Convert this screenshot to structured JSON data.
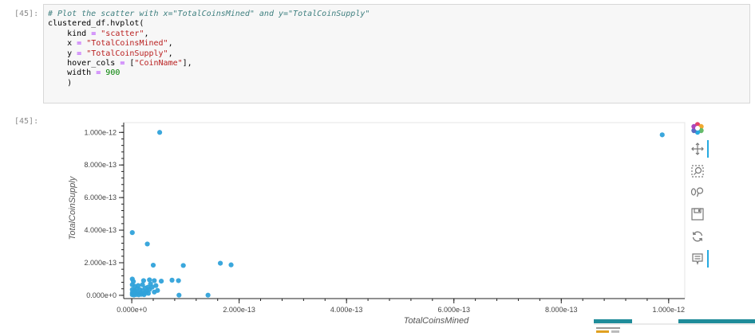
{
  "cells": {
    "in_prompt": "[45]:",
    "out_prompt": "[45]:",
    "code": {
      "comment": "# Plot the scatter with x=\"TotalCoinsMined\" and y=\"TotalCoinSupply\"",
      "line2": "clustered_df.hvplot(",
      "kind_key": "kind",
      "kind_val": "\"scatter\"",
      "x_key": "x",
      "x_val": "\"TotalCoinsMined\"",
      "y_key": "y",
      "y_val": "\"TotalCoinSupply\"",
      "hover_key": "hover_cols",
      "hover_val": "\"CoinName\"",
      "width_key": "width",
      "width_val": "900",
      "close": ")"
    }
  },
  "chart_data": {
    "type": "scatter",
    "xlabel": "TotalCoinsMined",
    "ylabel": "TotalCoinSupply",
    "xlim": [
      -1.5e-14,
      1.03e-12
    ],
    "ylim": [
      -2e-14,
      1.06e-12
    ],
    "xticks": [
      0,
      2e-13,
      4e-13,
      6e-13,
      8e-13,
      1e-12
    ],
    "xtick_labels": [
      "0.000e+0",
      "2.000e-13",
      "4.000e-13",
      "6.000e-13",
      "8.000e-13",
      "1.000e-12"
    ],
    "yticks": [
      0,
      2e-13,
      4e-13,
      6e-13,
      8e-13,
      1e-12
    ],
    "ytick_labels": [
      "0.000e+0",
      "2.000e-13",
      "4.000e-13",
      "6.000e-13",
      "8.000e-13",
      "1.000e-12"
    ],
    "color": "#30a2da",
    "points": [
      [
        5.2e-14,
        1e-12
      ],
      [
        9.88e-13,
        9.85e-13
      ],
      [
        1e-15,
        3.85e-13
      ],
      [
        2.9e-14,
        3.15e-13
      ],
      [
        4e-14,
        1.85e-13
      ],
      [
        9.6e-14,
        1.83e-13
      ],
      [
        1.65e-13,
        1.97e-13
      ],
      [
        1.85e-13,
        1.87e-13
      ],
      [
        1e-15,
        1e-13
      ],
      [
        3e-15,
        8.5e-14
      ],
      [
        2.2e-14,
        9e-14
      ],
      [
        3.3e-14,
        9.5e-14
      ],
      [
        4.2e-14,
        9e-14
      ],
      [
        5.5e-14,
        8.7e-14
      ],
      [
        7.5e-14,
        9.3e-14
      ],
      [
        8.7e-14,
        9e-14
      ],
      [
        1e-15,
        6.5e-14
      ],
      [
        6e-15,
        5.5e-14
      ],
      [
        1.2e-14,
        6e-14
      ],
      [
        2e-14,
        6.5e-14
      ],
      [
        3.5e-14,
        7e-14
      ],
      [
        4.5e-14,
        6e-14
      ],
      [
        2.5e-14,
        4.5e-14
      ],
      [
        3e-14,
        5e-14
      ],
      [
        1e-15,
        3.5e-14
      ],
      [
        5e-15,
        3e-14
      ],
      [
        1e-14,
        4e-14
      ],
      [
        1.5e-14,
        3.5e-14
      ],
      [
        2e-14,
        3e-14
      ],
      [
        2.8e-14,
        2.5e-14
      ],
      [
        3.3e-14,
        3.5e-14
      ],
      [
        4.2e-14,
        2e-14
      ],
      [
        4.8e-14,
        3e-14
      ],
      [
        1e-15,
        1.5e-14
      ],
      [
        3e-15,
        1e-14
      ],
      [
        7e-15,
        1.8e-14
      ],
      [
        1.1e-14,
        1.2e-14
      ],
      [
        1.6e-14,
        1.6e-14
      ],
      [
        2.2e-14,
        1e-14
      ],
      [
        2.6e-14,
        1.8e-14
      ],
      [
        3.1e-14,
        1.2e-14
      ],
      [
        1e-15,
        4e-15
      ],
      [
        4e-15,
        2e-15
      ],
      [
        8e-15,
        5e-15
      ],
      [
        1.3e-14,
        3e-15
      ],
      [
        1.8e-14,
        6e-15
      ],
      [
        2.3e-14,
        4e-15
      ],
      [
        6e-15,
        2.5e-14
      ],
      [
        3.8e-14,
        5e-14
      ],
      [
        8.8e-14,
        1e-15
      ],
      [
        1.42e-13,
        1e-15
      ]
    ]
  }
}
